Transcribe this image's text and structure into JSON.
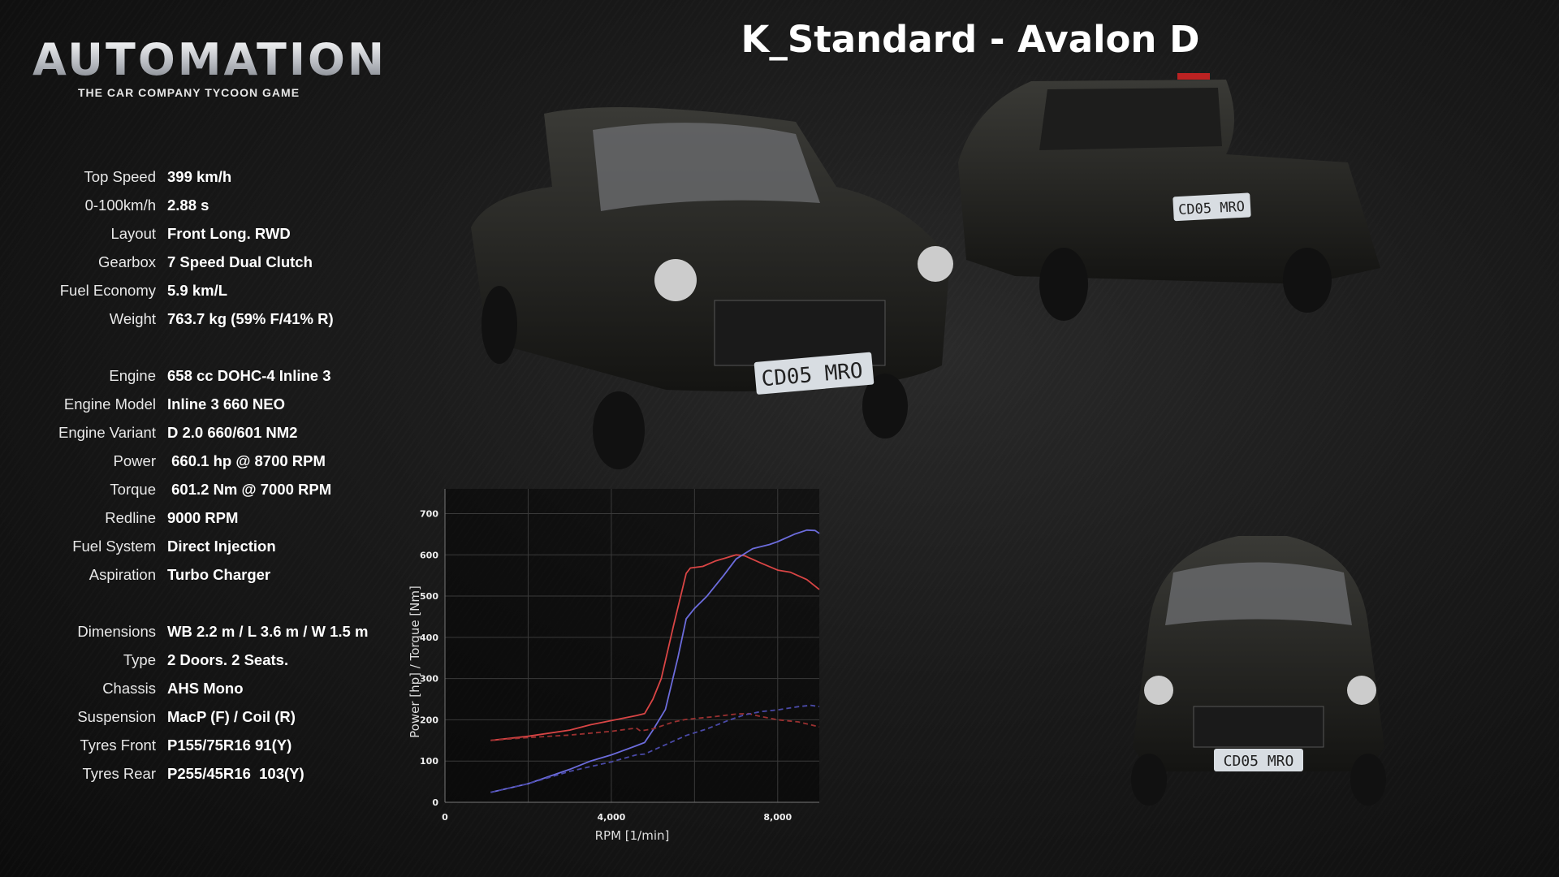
{
  "logo": {
    "main": "AUTOMATION",
    "sub": "THE CAR COMPANY TYCOON GAME"
  },
  "title": "K_Standard - Avalon D",
  "plate": "CD05 MRO",
  "specs": {
    "group1": [
      {
        "label": "Top Speed",
        "value": "399 km/h"
      },
      {
        "label": "0-100km/h",
        "value": "2.88 s"
      },
      {
        "label": "Layout",
        "value": "Front Long. RWD"
      },
      {
        "label": "Gearbox",
        "value": "7 Speed Dual Clutch"
      },
      {
        "label": "Fuel Economy",
        "value": "5.9 km/L"
      },
      {
        "label": "Weight",
        "value": "763.7 kg (59% F/41% R)"
      }
    ],
    "group2": [
      {
        "label": "Engine",
        "value": "658 cc DOHC-4 Inline 3"
      },
      {
        "label": "Engine Model",
        "value": "Inline 3 660 NEO"
      },
      {
        "label": "Engine Variant",
        "value": "D 2.0 660/601 NM2"
      },
      {
        "label": "Power",
        "value": " 660.1 hp @ 8700 RPM"
      },
      {
        "label": "Torque",
        "value": " 601.2 Nm @ 7000 RPM"
      },
      {
        "label": "Redline",
        "value": "9000 RPM"
      },
      {
        "label": "Fuel System",
        "value": "Direct Injection"
      },
      {
        "label": "Aspiration",
        "value": "Turbo Charger"
      }
    ],
    "group3": [
      {
        "label": "Dimensions",
        "value": "WB 2.2 m / L 3.6 m / W 1.5 m"
      },
      {
        "label": "Type",
        "value": "2 Doors. 2 Seats."
      },
      {
        "label": "Chassis",
        "value": "AHS Mono"
      },
      {
        "label": "Suspension",
        "value": "MacP (F) / Coil (R)"
      },
      {
        "label": "Tyres Front",
        "value": "P155/75R16 91(Y)"
      },
      {
        "label": "Tyres Rear",
        "value": "P255/45R16  103(Y)"
      }
    ]
  },
  "chart_data": {
    "type": "line",
    "xlabel": "RPM [1/min]",
    "ylabel": "Power [hp] / Torque [Nm]",
    "xlim": [
      0,
      9000
    ],
    "ylim": [
      0,
      760
    ],
    "xticks": [
      0,
      4000,
      8000
    ],
    "xtick_labels": [
      "0",
      "4,000",
      "8,000"
    ],
    "yticks": [
      0,
      100,
      200,
      300,
      400,
      500,
      600,
      700
    ],
    "grid": true,
    "series": [
      {
        "color": "#d94545",
        "dashed": false,
        "points": [
          [
            1100,
            150
          ],
          [
            2000,
            160
          ],
          [
            3000,
            175
          ],
          [
            3500,
            188
          ],
          [
            4000,
            198
          ],
          [
            4600,
            210
          ],
          [
            4800,
            215
          ],
          [
            5000,
            250
          ],
          [
            5200,
            300
          ],
          [
            5500,
            430
          ],
          [
            5800,
            555
          ],
          [
            5900,
            568
          ],
          [
            6200,
            572
          ],
          [
            6500,
            585
          ],
          [
            7000,
            600
          ],
          [
            7200,
            598
          ],
          [
            7600,
            580
          ],
          [
            8000,
            563
          ],
          [
            8300,
            558
          ],
          [
            8700,
            540
          ],
          [
            9000,
            516
          ]
        ]
      },
      {
        "color": "#6c6cdc",
        "dashed": false,
        "points": [
          [
            1100,
            24
          ],
          [
            2000,
            45
          ],
          [
            3000,
            80
          ],
          [
            3500,
            100
          ],
          [
            4000,
            115
          ],
          [
            4600,
            137
          ],
          [
            4800,
            145
          ],
          [
            5000,
            175
          ],
          [
            5300,
            225
          ],
          [
            5600,
            350
          ],
          [
            5800,
            445
          ],
          [
            6000,
            470
          ],
          [
            6300,
            500
          ],
          [
            6700,
            550
          ],
          [
            7000,
            590
          ],
          [
            7400,
            615
          ],
          [
            7800,
            625
          ],
          [
            8000,
            632
          ],
          [
            8400,
            650
          ],
          [
            8700,
            660
          ],
          [
            8900,
            659
          ],
          [
            9000,
            652
          ]
        ]
      },
      {
        "color": "#9a3030",
        "dashed": true,
        "points": [
          [
            1100,
            150
          ],
          [
            2000,
            157
          ],
          [
            3000,
            163
          ],
          [
            4000,
            172
          ],
          [
            4600,
            180
          ],
          [
            4700,
            173
          ],
          [
            5000,
            178
          ],
          [
            5500,
            195
          ],
          [
            5800,
            201
          ],
          [
            6500,
            208
          ],
          [
            7000,
            214
          ],
          [
            7300,
            215
          ],
          [
            7600,
            208
          ],
          [
            8000,
            200
          ],
          [
            8500,
            195
          ],
          [
            9000,
            183
          ]
        ]
      },
      {
        "color": "#4a4aa8",
        "dashed": true,
        "points": [
          [
            1100,
            24
          ],
          [
            2000,
            45
          ],
          [
            3000,
            75
          ],
          [
            4000,
            98
          ],
          [
            4600,
            115
          ],
          [
            4800,
            117
          ],
          [
            5200,
            135
          ],
          [
            5800,
            162
          ],
          [
            6300,
            178
          ],
          [
            6800,
            198
          ],
          [
            7200,
            212
          ],
          [
            7600,
            220
          ],
          [
            8000,
            224
          ],
          [
            8500,
            232
          ],
          [
            8800,
            235
          ],
          [
            9000,
            232
          ]
        ]
      }
    ]
  }
}
